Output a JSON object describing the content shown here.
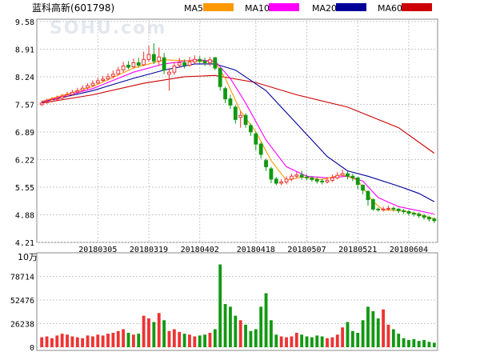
{
  "header": {
    "name": "蓝科高新",
    "code": "(601798)",
    "watermark": "SOHU.com"
  },
  "legend": [
    {
      "label": "MA5",
      "color": "#ff9900"
    },
    {
      "label": "MA10",
      "color": "#ff00ff"
    },
    {
      "label": "MA20",
      "color": "#000099"
    },
    {
      "label": "MA60",
      "color": "#cc0000"
    }
  ],
  "colors": {
    "up": "#ee3333",
    "down": "#119911",
    "grid": "#c8c8c8",
    "frame": "#888888"
  },
  "volume_unit": "10万",
  "chart_data": {
    "type": "candlestick",
    "price_axis": {
      "ticks": [
        "9.58",
        "8.91",
        "8.24",
        "7.57",
        "6.89",
        "6.22",
        "5.55",
        "4.88",
        "4.21"
      ],
      "ylim": [
        4.21,
        9.58
      ]
    },
    "volume_axis": {
      "ticks": [
        "78714",
        "52476",
        "26238",
        "0"
      ],
      "ylim": [
        0,
        104952
      ]
    },
    "date_ticks": [
      {
        "label": "20180305",
        "index": 11
      },
      {
        "label": "20180319",
        "index": 21
      },
      {
        "label": "20180402",
        "index": 31
      },
      {
        "label": "20180418",
        "index": 42
      },
      {
        "label": "20180507",
        "index": 52
      },
      {
        "label": "20180521",
        "index": 62
      },
      {
        "label": "20180604",
        "index": 72
      }
    ],
    "candles": [
      [
        7.56,
        7.6,
        7.66,
        7.53
      ],
      [
        7.61,
        7.63,
        7.7,
        7.58
      ],
      [
        7.64,
        7.68,
        7.74,
        7.61
      ],
      [
        7.69,
        7.71,
        7.78,
        7.66
      ],
      [
        7.72,
        7.76,
        7.82,
        7.69
      ],
      [
        7.77,
        7.8,
        7.87,
        7.74
      ],
      [
        7.81,
        7.86,
        7.92,
        7.78
      ],
      [
        7.87,
        7.9,
        7.97,
        7.83
      ],
      [
        7.91,
        7.96,
        8.03,
        7.88
      ],
      [
        7.97,
        8.02,
        8.08,
        7.93
      ],
      [
        8.03,
        8.08,
        8.15,
        7.99
      ],
      [
        8.09,
        8.14,
        8.21,
        8.05
      ],
      [
        8.15,
        8.18,
        8.26,
        8.11
      ],
      [
        8.19,
        8.24,
        8.32,
        8.15
      ],
      [
        8.25,
        8.3,
        8.39,
        8.2
      ],
      [
        8.31,
        8.4,
        8.48,
        8.27
      ],
      [
        8.41,
        8.5,
        8.6,
        8.35
      ],
      [
        8.52,
        8.47,
        8.62,
        8.42
      ],
      [
        8.48,
        8.58,
        8.68,
        8.44
      ],
      [
        8.58,
        8.52,
        8.7,
        8.46
      ],
      [
        8.53,
        8.66,
        8.85,
        8.5
      ],
      [
        8.66,
        8.78,
        9.0,
        8.6
      ],
      [
        8.78,
        8.62,
        9.05,
        8.55
      ],
      [
        8.62,
        8.72,
        8.95,
        8.5
      ],
      [
        8.7,
        8.4,
        8.82,
        8.3
      ],
      [
        8.3,
        8.35,
        8.45,
        7.9
      ],
      [
        8.35,
        8.5,
        8.6,
        8.28
      ],
      [
        8.52,
        8.58,
        8.7,
        8.45
      ],
      [
        8.58,
        8.52,
        8.66,
        8.44
      ],
      [
        8.52,
        8.6,
        8.72,
        8.48
      ],
      [
        8.6,
        8.66,
        8.76,
        8.55
      ],
      [
        8.66,
        8.62,
        8.74,
        8.56
      ],
      [
        8.62,
        8.58,
        8.7,
        8.5
      ],
      [
        8.58,
        8.65,
        8.72,
        8.5
      ],
      [
        8.7,
        8.45,
        8.72,
        8.4
      ],
      [
        8.44,
        8.0,
        8.46,
        7.9
      ],
      [
        7.95,
        7.7,
        8.0,
        7.6
      ],
      [
        7.7,
        7.55,
        7.8,
        7.45
      ],
      [
        7.5,
        7.2,
        7.55,
        7.1
      ],
      [
        7.25,
        7.3,
        7.4,
        7.0
      ],
      [
        7.3,
        7.08,
        7.35,
        7.0
      ],
      [
        7.05,
        6.9,
        7.1,
        6.8
      ],
      [
        6.85,
        6.6,
        6.9,
        6.45
      ],
      [
        6.6,
        6.35,
        6.65,
        6.25
      ],
      [
        6.2,
        6.05,
        6.25,
        5.95
      ],
      [
        6.0,
        5.75,
        6.05,
        5.65
      ],
      [
        5.75,
        5.65,
        5.8,
        5.6
      ],
      [
        5.65,
        5.68,
        5.75,
        5.6
      ],
      [
        5.68,
        5.75,
        5.82,
        5.62
      ],
      [
        5.75,
        5.82,
        5.88,
        5.7
      ],
      [
        5.82,
        5.85,
        5.92,
        5.78
      ],
      [
        5.85,
        5.8,
        5.95,
        5.74
      ],
      [
        5.8,
        5.78,
        5.86,
        5.72
      ],
      [
        5.78,
        5.74,
        5.82,
        5.68
      ],
      [
        5.74,
        5.7,
        5.8,
        5.64
      ],
      [
        5.7,
        5.68,
        5.76,
        5.62
      ],
      [
        5.68,
        5.72,
        5.8,
        5.64
      ],
      [
        5.72,
        5.78,
        5.86,
        5.68
      ],
      [
        5.78,
        5.84,
        5.92,
        5.74
      ],
      [
        5.84,
        5.88,
        5.98,
        5.8
      ],
      [
        5.88,
        5.82,
        5.94,
        5.74
      ],
      [
        5.82,
        5.78,
        5.88,
        5.7
      ],
      [
        5.78,
        5.62,
        5.8,
        5.5
      ],
      [
        5.6,
        5.48,
        5.62,
        5.38
      ],
      [
        5.45,
        5.25,
        5.48,
        5.1
      ],
      [
        5.25,
        5.02,
        5.28,
        4.98
      ],
      [
        5.02,
        5.0,
        5.06,
        4.96
      ],
      [
        5.0,
        5.02,
        5.08,
        4.96
      ],
      [
        5.02,
        5.04,
        5.1,
        4.98
      ],
      [
        5.04,
        5.02,
        5.08,
        4.96
      ],
      [
        5.02,
        4.98,
        5.04,
        4.92
      ],
      [
        4.98,
        4.96,
        5.02,
        4.9
      ],
      [
        4.96,
        4.92,
        5.0,
        4.86
      ],
      [
        4.92,
        4.9,
        4.96,
        4.84
      ],
      [
        4.9,
        4.86,
        4.94,
        4.8
      ],
      [
        4.86,
        4.82,
        4.9,
        4.76
      ],
      [
        4.82,
        4.78,
        4.86,
        4.72
      ],
      [
        4.78,
        4.74,
        4.82,
        4.68
      ]
    ],
    "volumes": [
      11000,
      12000,
      10000,
      13000,
      15000,
      14000,
      12000,
      11000,
      10000,
      13000,
      12000,
      14000,
      13000,
      15000,
      16000,
      18000,
      20000,
      16000,
      14000,
      15000,
      35000,
      32000,
      28000,
      38000,
      30000,
      18000,
      20000,
      17000,
      15000,
      14000,
      12000,
      13000,
      14000,
      16000,
      20000,
      92000,
      48000,
      45000,
      35000,
      30000,
      25000,
      18000,
      20000,
      45000,
      60000,
      30000,
      14000,
      12000,
      11000,
      12000,
      16000,
      14000,
      12000,
      11000,
      13000,
      12000,
      10000,
      11000,
      14000,
      22000,
      28000,
      18000,
      16000,
      30000,
      45000,
      40000,
      32000,
      42000,
      25000,
      20000,
      15000,
      10000,
      8000,
      9000,
      7000,
      8000,
      6000,
      5000
    ],
    "ma_series": [
      {
        "name": "MA60",
        "color": "#cc0000",
        "values": [
          [
            0,
            7.6
          ],
          [
            10,
            7.8
          ],
          [
            20,
            8.08
          ],
          [
            28,
            8.24
          ],
          [
            34,
            8.27
          ],
          [
            42,
            8.1
          ],
          [
            50,
            7.8
          ],
          [
            60,
            7.5
          ],
          [
            70,
            7.0
          ],
          [
            77,
            6.38
          ]
        ]
      },
      {
        "name": "MA20",
        "color": "#000099",
        "values": [
          [
            0,
            7.62
          ],
          [
            10,
            7.9
          ],
          [
            18,
            8.2
          ],
          [
            24,
            8.4
          ],
          [
            30,
            8.55
          ],
          [
            34,
            8.55
          ],
          [
            38,
            8.4
          ],
          [
            44,
            7.9
          ],
          [
            50,
            7.1
          ],
          [
            56,
            6.3
          ],
          [
            60,
            5.95
          ],
          [
            64,
            5.82
          ],
          [
            70,
            5.58
          ],
          [
            74,
            5.4
          ],
          [
            77,
            5.2
          ]
        ]
      },
      {
        "name": "MA10",
        "color": "#ff00ff",
        "values": [
          [
            0,
            7.63
          ],
          [
            10,
            7.95
          ],
          [
            18,
            8.35
          ],
          [
            24,
            8.55
          ],
          [
            30,
            8.65
          ],
          [
            34,
            8.62
          ],
          [
            37,
            8.2
          ],
          [
            40,
            7.6
          ],
          [
            44,
            6.7
          ],
          [
            48,
            6.05
          ],
          [
            52,
            5.82
          ],
          [
            56,
            5.78
          ],
          [
            60,
            5.82
          ],
          [
            63,
            5.7
          ],
          [
            66,
            5.3
          ],
          [
            70,
            5.08
          ],
          [
            74,
            4.98
          ],
          [
            77,
            4.9
          ]
        ]
      },
      {
        "name": "MA5",
        "color": "#ff9900",
        "values": [
          [
            0,
            7.64
          ],
          [
            10,
            8.0
          ],
          [
            18,
            8.45
          ],
          [
            24,
            8.65
          ],
          [
            30,
            8.62
          ],
          [
            34,
            8.6
          ],
          [
            36,
            8.2
          ],
          [
            39,
            7.4
          ],
          [
            42,
            6.9
          ],
          [
            45,
            6.2
          ],
          [
            48,
            5.72
          ],
          [
            51,
            5.8
          ],
          [
            55,
            5.74
          ],
          [
            59,
            5.86
          ],
          [
            62,
            5.72
          ],
          [
            65,
            5.2
          ],
          [
            67,
            5.0
          ],
          [
            71,
            4.98
          ],
          [
            75,
            4.86
          ],
          [
            77,
            4.78
          ]
        ]
      }
    ]
  }
}
